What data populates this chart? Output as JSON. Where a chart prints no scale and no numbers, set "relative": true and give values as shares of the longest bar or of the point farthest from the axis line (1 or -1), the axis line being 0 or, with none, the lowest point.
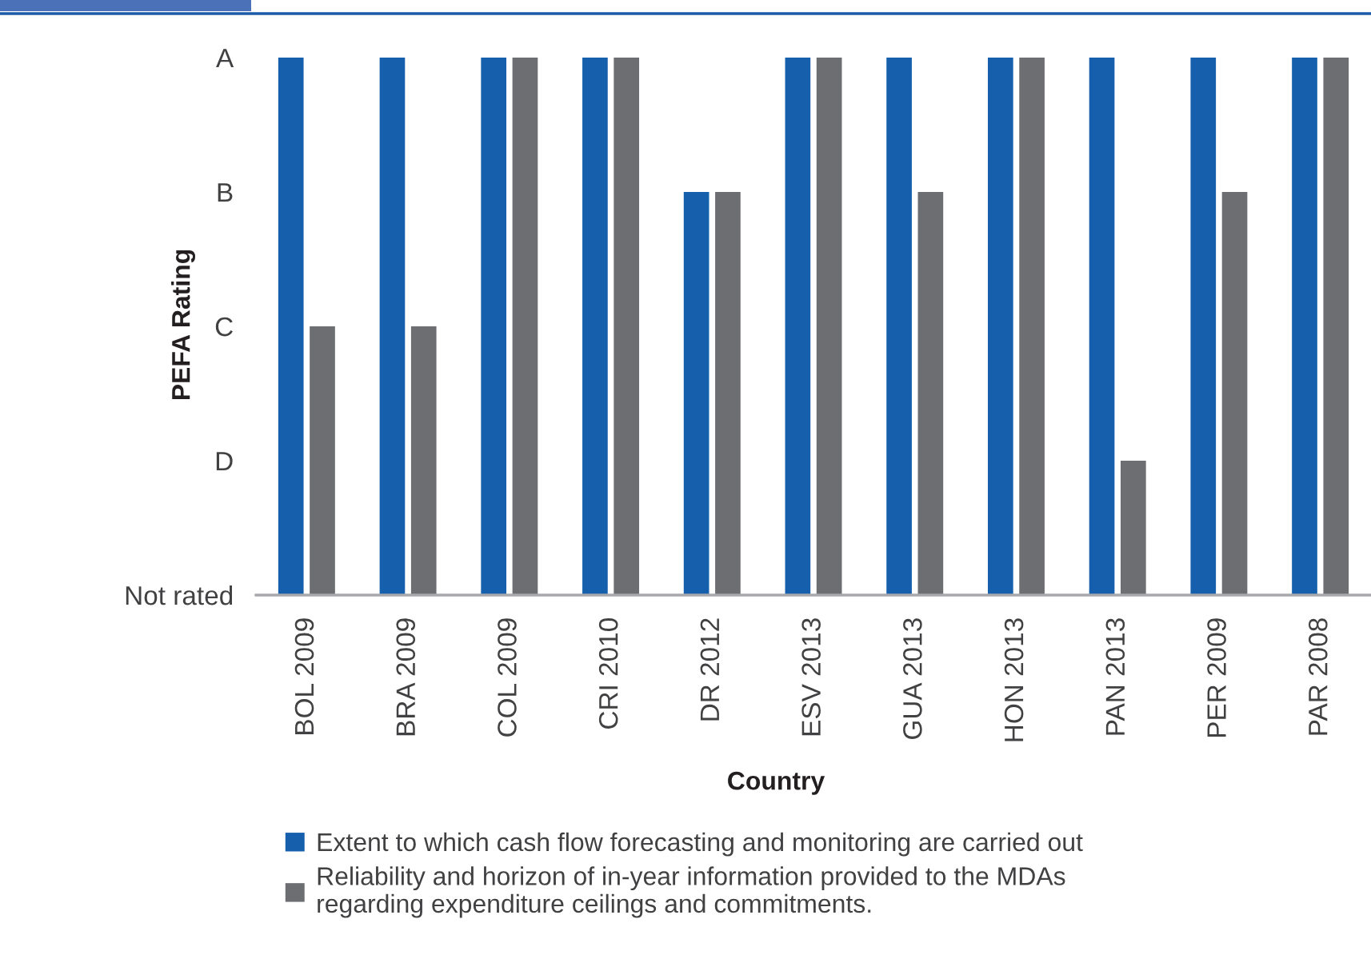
{
  "chart_data": {
    "type": "bar",
    "relative": true,
    "xlabel": "Country",
    "ylabel": "PEFA Rating",
    "categories": [
      "BOL 2009",
      "BRA 2009",
      "COL 2009",
      "CRI 2010",
      "DR 2012",
      "ESV 2013",
      "GUA 2013",
      "HON 2013",
      "PAN 2013",
      "PER 2009",
      "PAR 2008"
    ],
    "series": [
      {
        "name": "Extent to which cash flow forecasting and monitoring are carried out",
        "color": "#155fad",
        "values": [
          1,
          1,
          1,
          1,
          0.75,
          1,
          1,
          1,
          1,
          1,
          1
        ]
      },
      {
        "name": "Reliability and horizon of in-year information provided to the MDAs\nregarding expenditure ceilings and commitments.",
        "color": "#6d6e71",
        "values": [
          0.5,
          0.5,
          1,
          1,
          0.75,
          1,
          0.75,
          1,
          0.25,
          0.75,
          1
        ]
      }
    ],
    "annotations": [
      "A",
      "B",
      "C",
      "D",
      "Not rated"
    ],
    "grid": false,
    "legend": "bottom"
  }
}
